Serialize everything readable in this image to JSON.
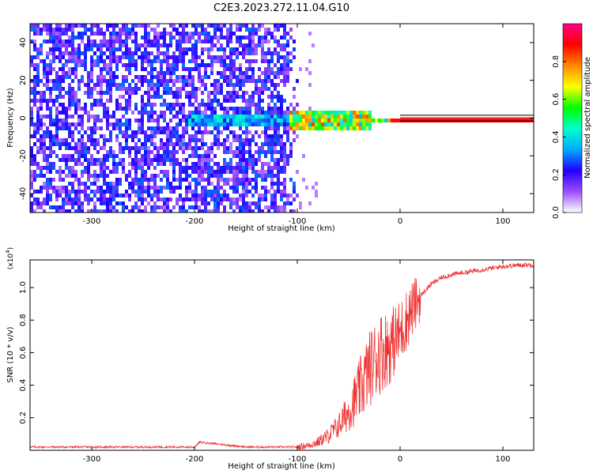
{
  "figure_title": "C2E3.2023.272.11.04.G10",
  "chart_data": [
    {
      "type": "heatmap",
      "title": "C2E3.2023.272.11.04.G10",
      "xlabel": "Height of straight line (km)",
      "ylabel": "Frequency (Hz)",
      "xlim": [
        -360,
        130
      ],
      "ylim": [
        -50,
        50
      ],
      "x_ticks": [
        -300,
        -200,
        -100,
        0,
        100
      ],
      "y_ticks": [
        -40,
        -20,
        0,
        20,
        40
      ],
      "colorbar": {
        "label": "Normalized spectral amplitude",
        "range": [
          0.0,
          1.0
        ],
        "ticks": [
          0.0,
          0.2,
          0.4,
          0.6,
          0.8
        ],
        "colormap": [
          "#ffffff",
          "#9b4dff",
          "#2200ff",
          "#00aaff",
          "#00ffcc",
          "#00ff00",
          "#ffff00",
          "#ff8800",
          "#ff0000",
          "#ff0088"
        ]
      },
      "features": {
        "noise_region_x": [
          -360,
          -100
        ],
        "signal_line_frequency_hz": 0,
        "signal_band_hz": [
          -1.5,
          1.5
        ],
        "signal_starts_x": -210
      },
      "grid": false
    },
    {
      "type": "line",
      "xlabel": "Height of straight line (km)",
      "ylabel": "SNR (10 * v/v)",
      "y_scale_label": "(x10^4)",
      "xlim": [
        -360,
        130
      ],
      "ylim": [
        0,
        1.17
      ],
      "x_ticks": [
        -300,
        -200,
        -100,
        0,
        100
      ],
      "y_ticks": [
        0.2,
        0.4,
        0.6,
        0.8,
        1.0
      ],
      "series": [
        {
          "color": "#ee3333",
          "x": [
            -360,
            -300,
            -250,
            -200,
            -195,
            -150,
            -120,
            -100,
            -90,
            -80,
            -70,
            -60,
            -50,
            -40,
            -30,
            -20,
            -10,
            0,
            10,
            20,
            30,
            40,
            50,
            60,
            70,
            80,
            90,
            100,
            110,
            120,
            130
          ],
          "y": [
            0.02,
            0.02,
            0.02,
            0.02,
            0.05,
            0.02,
            0.02,
            0.02,
            0.03,
            0.05,
            0.09,
            0.15,
            0.24,
            0.36,
            0.5,
            0.6,
            0.64,
            0.72,
            0.85,
            0.95,
            1.02,
            1.06,
            1.08,
            1.09,
            1.1,
            1.11,
            1.12,
            1.13,
            1.135,
            1.14,
            1.14
          ]
        }
      ],
      "grid": false
    }
  ]
}
